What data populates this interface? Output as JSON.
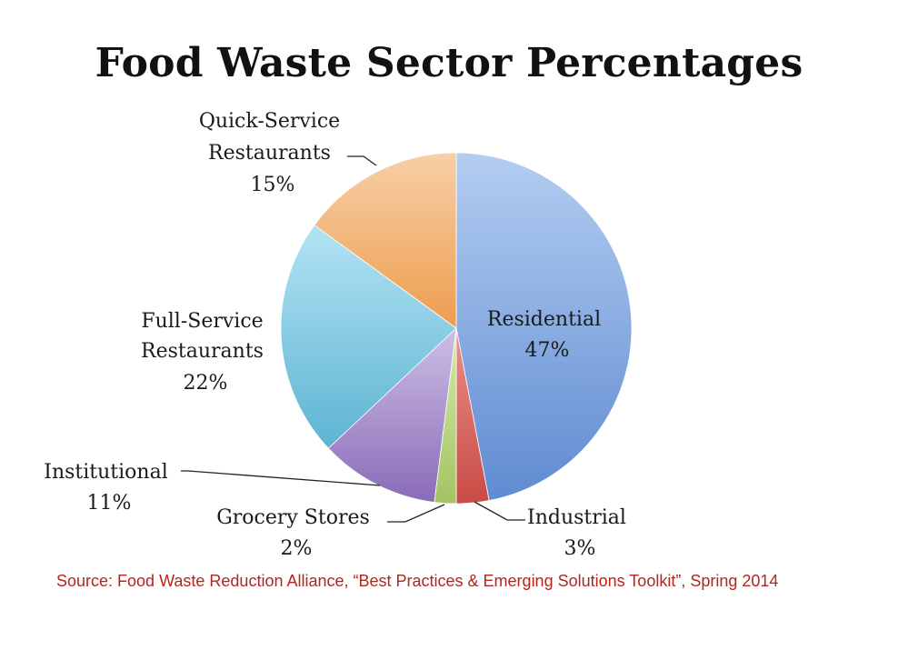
{
  "chart_data": {
    "type": "pie",
    "title": "Food Waste Sector Percentages",
    "slices": [
      {
        "label": "Residential",
        "value": 47,
        "value_label": "47%",
        "color": "#7fa6df"
      },
      {
        "label": "Industrial",
        "value": 3,
        "value_label": "3%",
        "color": "#dc6e68"
      },
      {
        "label": "Grocery Stores",
        "value": 2,
        "value_label": "2%",
        "color": "#bcd97e"
      },
      {
        "label": "Institutional",
        "value": 11,
        "value_label": "11%",
        "color": "#a58cc9"
      },
      {
        "label": "Full-Service Restaurants",
        "value": 22,
        "value_label": "22%",
        "color": "#7ccbe3"
      },
      {
        "label": "Quick-Service Restaurants",
        "value": 15,
        "value_label": "15%",
        "color": "#f3b071"
      }
    ],
    "start_angle_deg": 0,
    "direction": "clockwise",
    "legend": "none"
  },
  "source": "Source: Food Waste Reduction Alliance, “Best Practices & Emerging Solutions Toolkit”, Spring 2014"
}
